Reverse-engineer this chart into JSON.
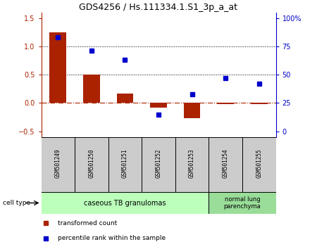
{
  "title": "GDS4256 / Hs.111334.1.S1_3p_a_at",
  "samples": [
    "GSM501249",
    "GSM501250",
    "GSM501251",
    "GSM501252",
    "GSM501253",
    "GSM501254",
    "GSM501255"
  ],
  "red_values": [
    1.25,
    0.5,
    0.17,
    -0.08,
    -0.27,
    -0.02,
    -0.02
  ],
  "blue_values": [
    83,
    71,
    63,
    15,
    33,
    47,
    42
  ],
  "ylim_left": [
    -0.6,
    1.6
  ],
  "ylim_right": [
    -5,
    105
  ],
  "left_yticks": [
    -0.5,
    0.0,
    0.5,
    1.0,
    1.5
  ],
  "right_yticks": [
    0,
    25,
    50,
    75,
    100
  ],
  "right_ytick_labels": [
    "0",
    "25",
    "50",
    "75",
    "100%"
  ],
  "bar_width": 0.5,
  "red_color": "#aa2200",
  "blue_color": "#0000cc",
  "sample_box_color": "#cccccc",
  "cell_group1_label": "caseous TB granulomas",
  "cell_group1_color": "#bbffbb",
  "cell_group1_n": 5,
  "cell_group2_label": "normal lung\nparenchyma",
  "cell_group2_color": "#99dd99",
  "cell_group2_n": 2,
  "legend_red": "transformed count",
  "legend_blue": "percentile rank within the sample",
  "cell_type_text": "cell type"
}
